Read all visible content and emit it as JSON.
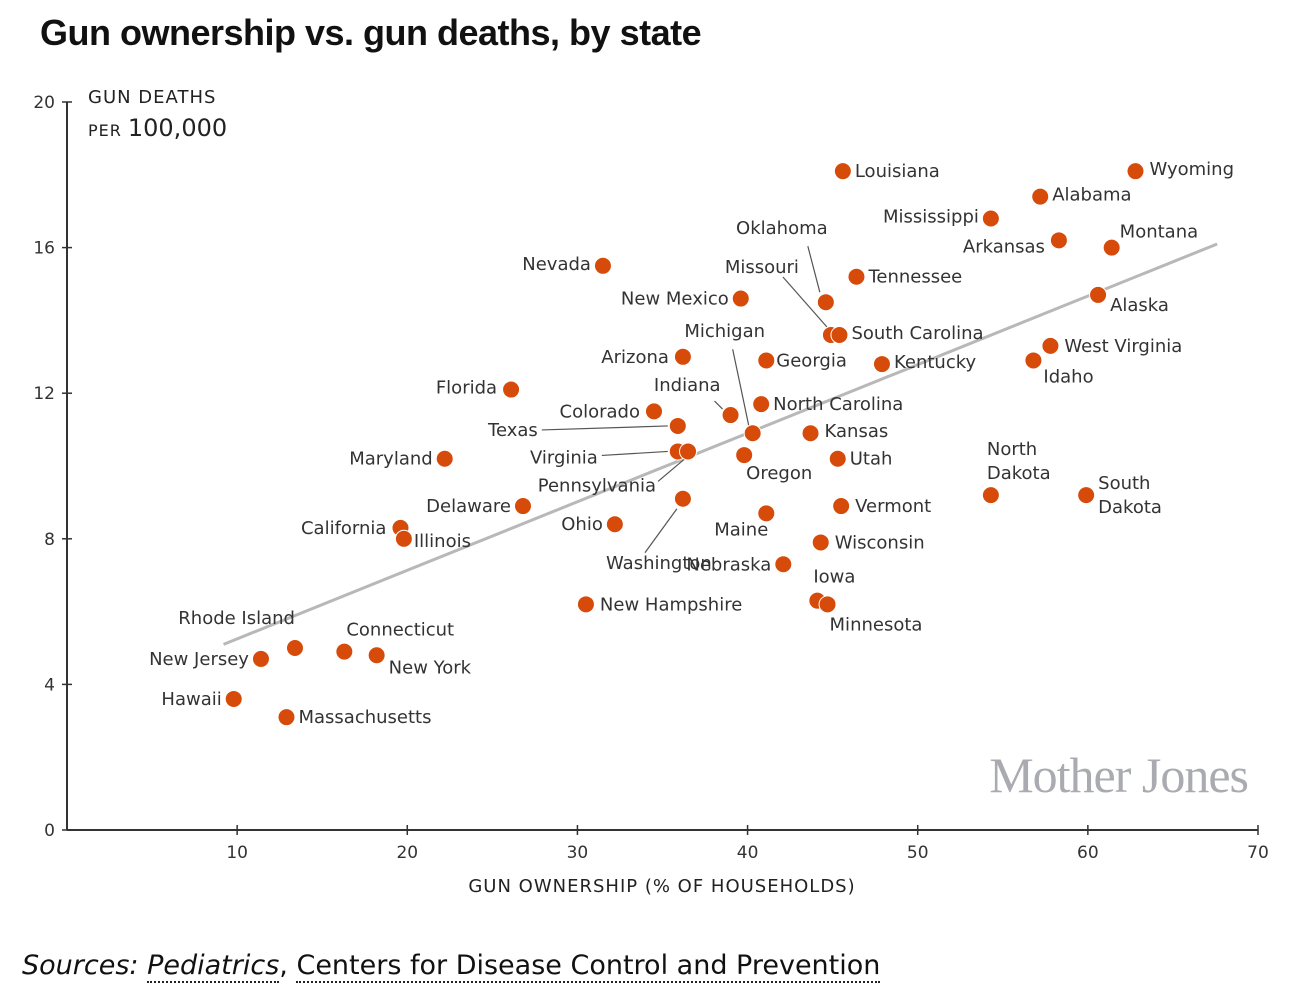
{
  "title": "Gun ownership vs. gun deaths, by state",
  "sources": {
    "prefix": "Sources:",
    "source1": "Pediatrics",
    "separator": ",",
    "source2": "Centers for Disease Control and Prevention"
  },
  "logo": "Mother Jones",
  "colors": {
    "point": "#d64a0a",
    "trend": "#b8b8b8",
    "axis": "#333333"
  },
  "chart_data": {
    "type": "scatter",
    "title": "Gun ownership vs. gun deaths, by state",
    "xlabel": "GUN OWNERSHIP (% OF HOUSEHOLDS)",
    "ylabel_line1": "GUN DEATHS",
    "ylabel_line2_small": "PER",
    "ylabel_line2": "100,000",
    "xlim": [
      0,
      70
    ],
    "ylim": [
      0,
      20
    ],
    "xticks": [
      10,
      20,
      30,
      40,
      50,
      60,
      70
    ],
    "yticks": [
      0,
      4,
      8,
      12,
      16,
      20
    ],
    "grid": false,
    "trendline": {
      "x": [
        9.2,
        67.6
      ],
      "y": [
        5.1,
        16.1
      ]
    },
    "points": [
      {
        "state": "Wyoming",
        "x": 62.8,
        "y": 18.1
      },
      {
        "state": "Louisiana",
        "x": 45.6,
        "y": 18.1
      },
      {
        "state": "Alabama",
        "x": 57.2,
        "y": 17.4
      },
      {
        "state": "Mississippi",
        "x": 54.3,
        "y": 16.8
      },
      {
        "state": "Arkansas",
        "x": 58.3,
        "y": 16.2
      },
      {
        "state": "Montana",
        "x": 61.4,
        "y": 16.0
      },
      {
        "state": "Nevada",
        "x": 31.5,
        "y": 15.5
      },
      {
        "state": "Tennessee",
        "x": 46.4,
        "y": 15.2
      },
      {
        "state": "New Mexico",
        "x": 39.6,
        "y": 14.6
      },
      {
        "state": "Oklahoma",
        "x": 44.6,
        "y": 14.5
      },
      {
        "state": "Alaska",
        "x": 60.6,
        "y": 14.7
      },
      {
        "state": "Missouri",
        "x": 44.9,
        "y": 13.6
      },
      {
        "state": "South Carolina",
        "x": 45.4,
        "y": 13.6
      },
      {
        "state": "West Virginia",
        "x": 57.8,
        "y": 13.3
      },
      {
        "state": "Arizona",
        "x": 36.2,
        "y": 13.0
      },
      {
        "state": "Georgia",
        "x": 41.1,
        "y": 12.9
      },
      {
        "state": "Idaho",
        "x": 56.8,
        "y": 12.9
      },
      {
        "state": "Kentucky",
        "x": 47.9,
        "y": 12.8
      },
      {
        "state": "Florida",
        "x": 26.1,
        "y": 12.1
      },
      {
        "state": "North Carolina",
        "x": 40.8,
        "y": 11.7
      },
      {
        "state": "Colorado",
        "x": 34.5,
        "y": 11.5
      },
      {
        "state": "Indiana",
        "x": 39.0,
        "y": 11.4
      },
      {
        "state": "Texas",
        "x": 35.9,
        "y": 11.1
      },
      {
        "state": "Michigan",
        "x": 40.3,
        "y": 10.9
      },
      {
        "state": "Kansas",
        "x": 43.7,
        "y": 10.9
      },
      {
        "state": "Virginia",
        "x": 35.9,
        "y": 10.4
      },
      {
        "state": "Pennsylvania",
        "x": 36.5,
        "y": 10.4
      },
      {
        "state": "Oregon",
        "x": 39.8,
        "y": 10.3
      },
      {
        "state": "Utah",
        "x": 45.3,
        "y": 10.2
      },
      {
        "state": "Maryland",
        "x": 22.2,
        "y": 10.2
      },
      {
        "state": "North Dakota",
        "x": 54.3,
        "y": 9.2
      },
      {
        "state": "South Dakota",
        "x": 59.9,
        "y": 9.2
      },
      {
        "state": "Washington",
        "x": 36.2,
        "y": 9.1
      },
      {
        "state": "Delaware",
        "x": 26.8,
        "y": 8.9
      },
      {
        "state": "Vermont",
        "x": 45.5,
        "y": 8.9
      },
      {
        "state": "Maine",
        "x": 41.1,
        "y": 8.7
      },
      {
        "state": "Ohio",
        "x": 32.2,
        "y": 8.4
      },
      {
        "state": "California",
        "x": 19.6,
        "y": 8.3
      },
      {
        "state": "Illinois",
        "x": 19.8,
        "y": 8.0
      },
      {
        "state": "Wisconsin",
        "x": 44.3,
        "y": 7.9
      },
      {
        "state": "Nebraska",
        "x": 42.1,
        "y": 7.3
      },
      {
        "state": "New Hampshire",
        "x": 30.5,
        "y": 6.2
      },
      {
        "state": "Iowa",
        "x": 44.1,
        "y": 6.3
      },
      {
        "state": "Minnesota",
        "x": 44.7,
        "y": 6.2
      },
      {
        "state": "Rhode Island",
        "x": 13.4,
        "y": 5.0
      },
      {
        "state": "Connecticut",
        "x": 16.3,
        "y": 4.9
      },
      {
        "state": "New York",
        "x": 18.2,
        "y": 4.8
      },
      {
        "state": "New Jersey",
        "x": 11.4,
        "y": 4.7
      },
      {
        "state": "Hawaii",
        "x": 9.8,
        "y": 3.6
      },
      {
        "state": "Massachusetts",
        "x": 12.9,
        "y": 3.1
      }
    ]
  }
}
